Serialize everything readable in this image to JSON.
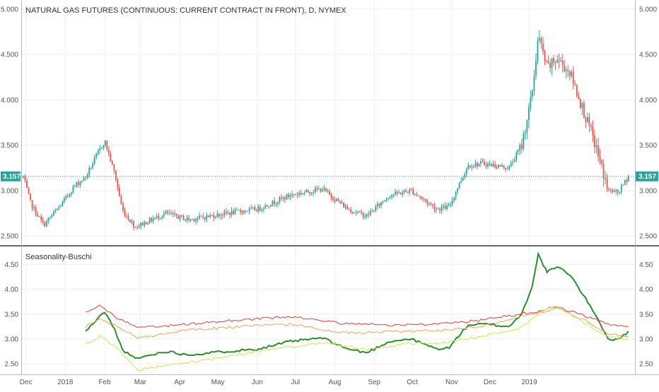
{
  "chart_data": [
    {
      "type": "candlestick",
      "title": "NATURAL GAS FUTURES (CONTINUOUS: CURRENT CONTRACT IN FRONT), D, NYMEX",
      "ylim": [
        2.4,
        5.1
      ],
      "yticks": [
        "2.500",
        "3.000",
        "3.500",
        "4.000",
        "4.500",
        "5.000"
      ],
      "ytick_values": [
        2.5,
        3.0,
        3.5,
        4.0,
        4.5,
        5.0
      ],
      "last_price": 3.157,
      "last_price_label": "3.157",
      "up_color": "#26a69a",
      "down_color": "#ef5350",
      "last_price_color": "#26a69a",
      "key_closes": [
        [
          0,
          3.15
        ],
        [
          6,
          2.85
        ],
        [
          16,
          2.62
        ],
        [
          30,
          2.85
        ],
        [
          40,
          3.05
        ],
        [
          49,
          3.15
        ],
        [
          60,
          3.45
        ],
        [
          64,
          3.55
        ],
        [
          72,
          3.18
        ],
        [
          78,
          2.78
        ],
        [
          88,
          2.6
        ],
        [
          112,
          2.75
        ],
        [
          130,
          2.68
        ],
        [
          160,
          2.75
        ],
        [
          185,
          2.8
        ],
        [
          210,
          2.95
        ],
        [
          235,
          3.02
        ],
        [
          255,
          2.8
        ],
        [
          270,
          2.72
        ],
        [
          288,
          2.95
        ],
        [
          305,
          3.0
        ],
        [
          325,
          2.8
        ],
        [
          335,
          2.82
        ],
        [
          342,
          3.05
        ],
        [
          350,
          3.28
        ],
        [
          362,
          3.3
        ],
        [
          382,
          3.25
        ],
        [
          392,
          3.5
        ],
        [
          400,
          4.05
        ],
        [
          405,
          4.7
        ],
        [
          412,
          4.35
        ],
        [
          420,
          4.45
        ],
        [
          430,
          4.3
        ],
        [
          440,
          3.9
        ],
        [
          450,
          3.5
        ],
        [
          460,
          3.0
        ],
        [
          468,
          2.98
        ],
        [
          476,
          3.157
        ]
      ]
    },
    {
      "type": "line",
      "title": "Seasonality-Buschi",
      "ylim": [
        2.3,
        4.85
      ],
      "yticks": [
        "2.50",
        "3.00",
        "3.50",
        "4.00",
        "4.50"
      ],
      "ytick_values": [
        2.5,
        3.0,
        3.5,
        4.0,
        4.5
      ],
      "x_start_index": 49,
      "series": [
        {
          "color": "#2e8b2e",
          "width": 2,
          "points": [
            [
              49,
              3.15
            ],
            [
              60,
              3.45
            ],
            [
              64,
              3.55
            ],
            [
              72,
              3.18
            ],
            [
              78,
              2.78
            ],
            [
              88,
              2.6
            ],
            [
              112,
              2.75
            ],
            [
              130,
              2.68
            ],
            [
              160,
              2.75
            ],
            [
              185,
              2.8
            ],
            [
              210,
              2.95
            ],
            [
              235,
              3.02
            ],
            [
              255,
              2.8
            ],
            [
              270,
              2.72
            ],
            [
              288,
              2.95
            ],
            [
              305,
              3.0
            ],
            [
              325,
              2.8
            ],
            [
              335,
              2.82
            ],
            [
              342,
              3.05
            ],
            [
              350,
              3.28
            ],
            [
              362,
              3.3
            ],
            [
              382,
              3.25
            ],
            [
              392,
              3.5
            ],
            [
              400,
              4.05
            ],
            [
              405,
              4.7
            ],
            [
              412,
              4.35
            ],
            [
              420,
              4.45
            ],
            [
              430,
              4.3
            ],
            [
              440,
              3.9
            ],
            [
              450,
              3.5
            ],
            [
              460,
              3.0
            ],
            [
              468,
              2.98
            ],
            [
              476,
              3.157
            ]
          ]
        },
        {
          "color": "#e53935",
          "width": 1,
          "points": [
            [
              49,
              3.55
            ],
            [
              60,
              3.68
            ],
            [
              72,
              3.45
            ],
            [
              90,
              3.22
            ],
            [
              130,
              3.3
            ],
            [
              170,
              3.38
            ],
            [
              210,
              3.45
            ],
            [
              250,
              3.32
            ],
            [
              290,
              3.28
            ],
            [
              330,
              3.3
            ],
            [
              360,
              3.38
            ],
            [
              390,
              3.5
            ],
            [
              410,
              3.58
            ],
            [
              420,
              3.65
            ],
            [
              440,
              3.48
            ],
            [
              460,
              3.3
            ],
            [
              476,
              3.25
            ]
          ]
        },
        {
          "color": "#f5a15a",
          "width": 1,
          "points": [
            [
              49,
              3.25
            ],
            [
              60,
              3.4
            ],
            [
              72,
              3.28
            ],
            [
              90,
              3.02
            ],
            [
              130,
              3.18
            ],
            [
              170,
              3.25
            ],
            [
              210,
              3.3
            ],
            [
              250,
              3.12
            ],
            [
              290,
              3.15
            ],
            [
              330,
              3.18
            ],
            [
              360,
              3.25
            ],
            [
              390,
              3.45
            ],
            [
              410,
              3.55
            ],
            [
              420,
              3.62
            ],
            [
              440,
              3.4
            ],
            [
              460,
              3.1
            ],
            [
              476,
              3.05
            ]
          ]
        },
        {
          "color": "#c6e85a",
          "width": 1,
          "points": [
            [
              49,
              2.88
            ],
            [
              60,
              3.05
            ],
            [
              72,
              2.85
            ],
            [
              90,
              2.38
            ],
            [
              110,
              2.45
            ],
            [
              150,
              2.6
            ],
            [
              200,
              2.82
            ],
            [
              240,
              2.92
            ],
            [
              270,
              2.78
            ],
            [
              300,
              2.9
            ],
            [
              330,
              2.92
            ],
            [
              360,
              3.05
            ],
            [
              390,
              3.2
            ],
            [
              410,
              3.6
            ],
            [
              420,
              3.66
            ],
            [
              440,
              3.35
            ],
            [
              460,
              3.05
            ],
            [
              476,
              2.98
            ]
          ]
        }
      ]
    }
  ],
  "x_axis": {
    "total_days": 480,
    "labels": [
      {
        "label": "Dec",
        "day": 2
      },
      {
        "label": "2018",
        "day": 33
      },
      {
        "label": "Feb",
        "day": 64
      },
      {
        "label": "Mar",
        "day": 92
      },
      {
        "label": "Apr",
        "day": 123
      },
      {
        "label": "May",
        "day": 153
      },
      {
        "label": "Jun",
        "day": 184
      },
      {
        "label": "Jul",
        "day": 214
      },
      {
        "label": "Aug",
        "day": 245
      },
      {
        "label": "Sep",
        "day": 276
      },
      {
        "label": "Oct",
        "day": 306
      },
      {
        "label": "Nov",
        "day": 337
      },
      {
        "label": "Dec",
        "day": 367
      },
      {
        "label": "2019",
        "day": 398
      }
    ]
  }
}
